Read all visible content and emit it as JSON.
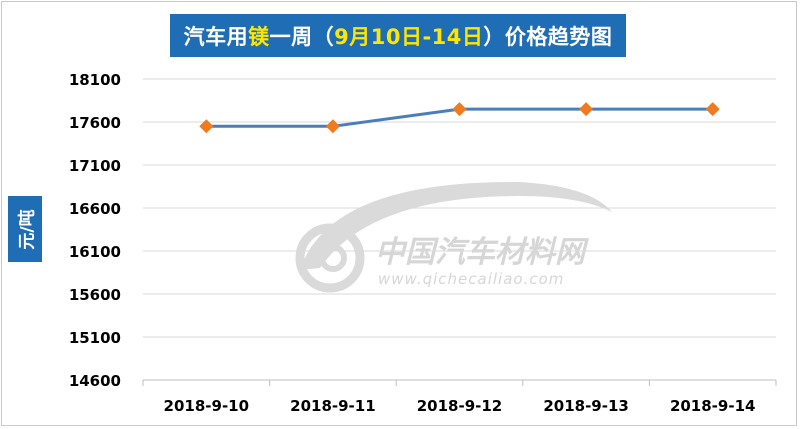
{
  "chart_data": {
    "type": "line",
    "title_parts": [
      "汽车用",
      "镁",
      "一周（",
      "9月10日-14日",
      "）价格趋势图"
    ],
    "ylabel": "元/吨",
    "xlabel": "",
    "categories": [
      "2018-9-10",
      "2018-9-11",
      "2018-9-12",
      "2018-9-13",
      "2018-9-14"
    ],
    "series": [
      {
        "values": [
          17550,
          17550,
          17750,
          17750,
          17750
        ]
      }
    ],
    "yticks": [
      14600,
      15100,
      15600,
      16100,
      16600,
      17100,
      17600,
      18100
    ],
    "ylim": [
      14600,
      18100
    ],
    "grid": true,
    "legend": "none",
    "watermark": {
      "cn": "中国汽车材料网",
      "url": "www.qichecailiao.com"
    },
    "colors": {
      "line": "#4a7ebb",
      "marker": "#f07b1e",
      "title_bg": "#1f6db5",
      "title_highlight": "#ffe600",
      "grid": "#d9d9d9"
    }
  }
}
